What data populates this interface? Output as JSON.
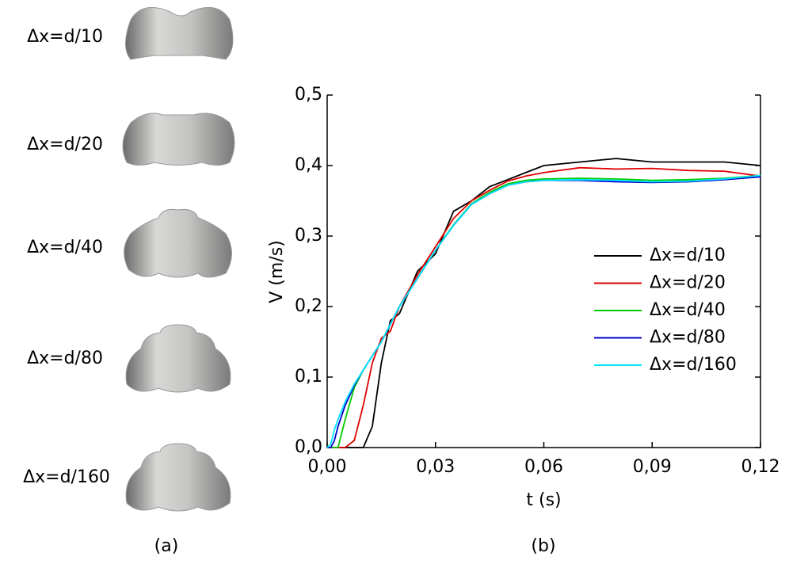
{
  "shapes": {
    "labels": [
      "Δx=d/10",
      "Δx=d/20",
      "Δx=d/40",
      "Δx=d/80",
      "Δx=d/160"
    ],
    "caption": "(a)"
  },
  "chart_data": {
    "type": "line",
    "panel_label": "(b)",
    "x_label": "t (s)",
    "y_label": "V (m/s)",
    "xlim": [
      0,
      0.12
    ],
    "ylim": [
      0,
      0.5
    ],
    "xticks": [
      {
        "value": 0,
        "label": "0,00"
      },
      {
        "value": 0.03,
        "label": "0,03"
      },
      {
        "value": 0.06,
        "label": "0,06"
      },
      {
        "value": 0.09,
        "label": "0,09"
      },
      {
        "value": 0.12,
        "label": "0,12"
      }
    ],
    "yticks": [
      {
        "value": 0,
        "label": "0,0"
      },
      {
        "value": 0.1,
        "label": "0,1"
      },
      {
        "value": 0.2,
        "label": "0,2"
      },
      {
        "value": 0.3,
        "label": "0,3"
      },
      {
        "value": 0.4,
        "label": "0,4"
      },
      {
        "value": 0.5,
        "label": "0,5"
      }
    ],
    "x": [
      0,
      0.001,
      0.002,
      0.003,
      0.005,
      0.0075,
      0.01,
      0.0125,
      0.015,
      0.0175,
      0.02,
      0.025,
      0.03,
      0.035,
      0.04,
      0.045,
      0.05,
      0.055,
      0.06,
      0.07,
      0.08,
      0.09,
      0.1,
      0.11,
      0.12
    ],
    "series": [
      {
        "name": "Δx=d/10",
        "color": "#000000",
        "values": [
          0,
          0,
          0,
          0,
          0,
          0,
          0,
          0.03,
          0.12,
          0.18,
          0.19,
          0.25,
          0.275,
          0.335,
          0.35,
          0.37,
          0.38,
          0.39,
          0.4,
          0.405,
          0.41,
          0.405,
          0.405,
          0.405,
          0.4
        ]
      },
      {
        "name": "Δx=d/20",
        "color": "#e00000",
        "values": [
          0,
          0,
          0,
          0,
          0,
          0.01,
          0.06,
          0.12,
          0.155,
          0.165,
          0.2,
          0.245,
          0.285,
          0.325,
          0.35,
          0.365,
          0.378,
          0.385,
          0.39,
          0.397,
          0.395,
          0.396,
          0.393,
          0.392,
          0.385
        ]
      },
      {
        "name": "Δx=d/40",
        "color": "#00cc00",
        "values": [
          0,
          0,
          0,
          0,
          0.04,
          0.085,
          0.11,
          0.13,
          0.15,
          0.175,
          0.2,
          0.24,
          0.28,
          0.316,
          0.346,
          0.362,
          0.374,
          0.379,
          0.381,
          0.382,
          0.381,
          0.379,
          0.38,
          0.382,
          0.386
        ]
      },
      {
        "name": "Δx=d/80",
        "color": "#0000cc",
        "values": [
          0,
          0,
          0.01,
          0.03,
          0.06,
          0.088,
          0.11,
          0.13,
          0.15,
          0.175,
          0.2,
          0.24,
          0.28,
          0.315,
          0.345,
          0.36,
          0.372,
          0.377,
          0.379,
          0.379,
          0.377,
          0.376,
          0.377,
          0.38,
          0.384
        ]
      },
      {
        "name": "Δx=d/160",
        "color": "#00e5ff",
        "values": [
          0,
          0.005,
          0.025,
          0.04,
          0.065,
          0.09,
          0.11,
          0.13,
          0.15,
          0.175,
          0.2,
          0.24,
          0.28,
          0.315,
          0.345,
          0.36,
          0.372,
          0.377,
          0.379,
          0.38,
          0.379,
          0.377,
          0.378,
          0.381,
          0.386
        ]
      }
    ]
  }
}
